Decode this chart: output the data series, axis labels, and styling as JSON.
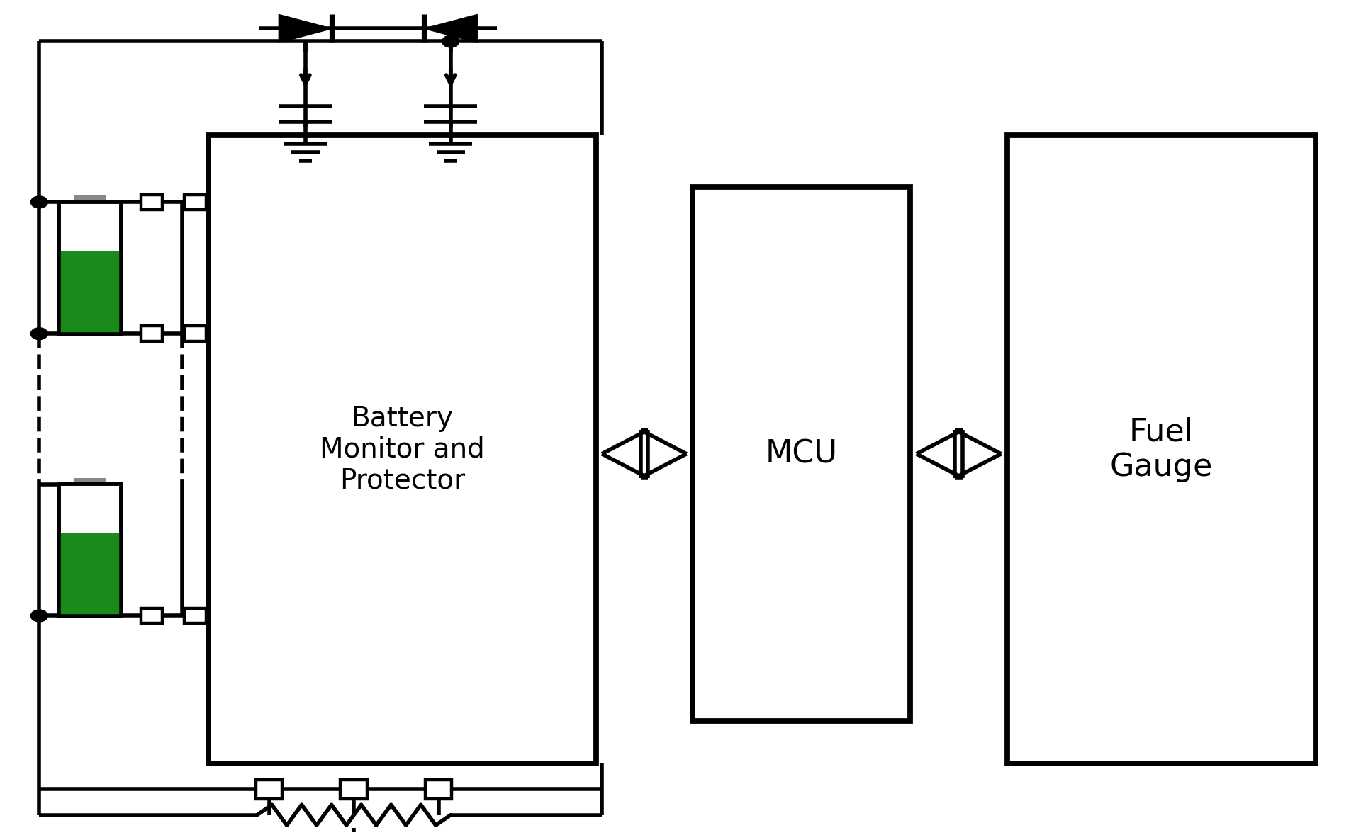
{
  "bg_color": "#ffffff",
  "lc": "#000000",
  "lw": 4.0,
  "battery_green": "#1a8a1a",
  "label_bmp": "Battery\nMonitor and\nProtector",
  "label_mcu": "MCU",
  "label_fg": "Fuel\nGauge",
  "fs_bmp": 28,
  "fs_mcu": 32,
  "fs_fg": 32,
  "fig_w": 19.2,
  "fig_h": 11.79
}
